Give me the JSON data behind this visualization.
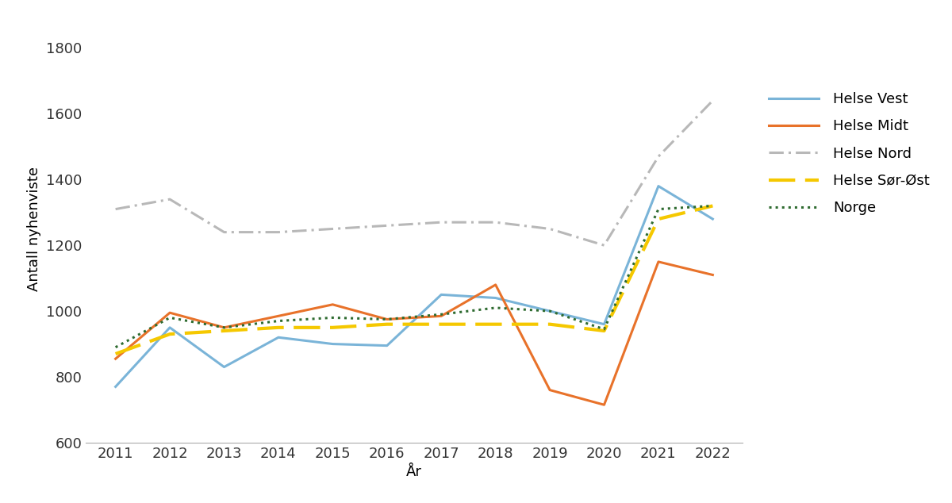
{
  "years": [
    2011,
    2012,
    2013,
    2014,
    2015,
    2016,
    2017,
    2018,
    2019,
    2020,
    2021,
    2022
  ],
  "helse_vest": [
    770,
    950,
    830,
    920,
    900,
    895,
    1050,
    1040,
    1000,
    960,
    1380,
    1280
  ],
  "helse_midt": [
    855,
    995,
    950,
    985,
    1020,
    975,
    985,
    1080,
    760,
    715,
    1150,
    1110
  ],
  "helse_nord": [
    1310,
    1340,
    1240,
    1240,
    1250,
    1260,
    1270,
    1270,
    1250,
    1200,
    1470,
    1640
  ],
  "helse_sor_ost": [
    870,
    930,
    940,
    950,
    950,
    960,
    960,
    960,
    960,
    940,
    1280,
    1320
  ],
  "norge": [
    890,
    980,
    950,
    970,
    980,
    975,
    990,
    1010,
    1000,
    945,
    1310,
    1320
  ],
  "colors": {
    "helse_vest": "#7ab4d8",
    "helse_midt": "#e8722a",
    "helse_nord": "#b8b8b8",
    "helse_sor_ost": "#f5c800",
    "norge": "#2e6b30"
  },
  "legend_labels": [
    "Helse Vest",
    "Helse Midt",
    "Helse Nord",
    "Helse Sør-Øst",
    "Norge"
  ],
  "xlabel": "År",
  "ylabel": "Antall nyhenviste",
  "ylim": [
    600,
    1900
  ],
  "yticks": [
    600,
    800,
    1000,
    1200,
    1400,
    1600,
    1800
  ],
  "background_color": "#ffffff",
  "font_size": 13,
  "linewidth": 2.2
}
